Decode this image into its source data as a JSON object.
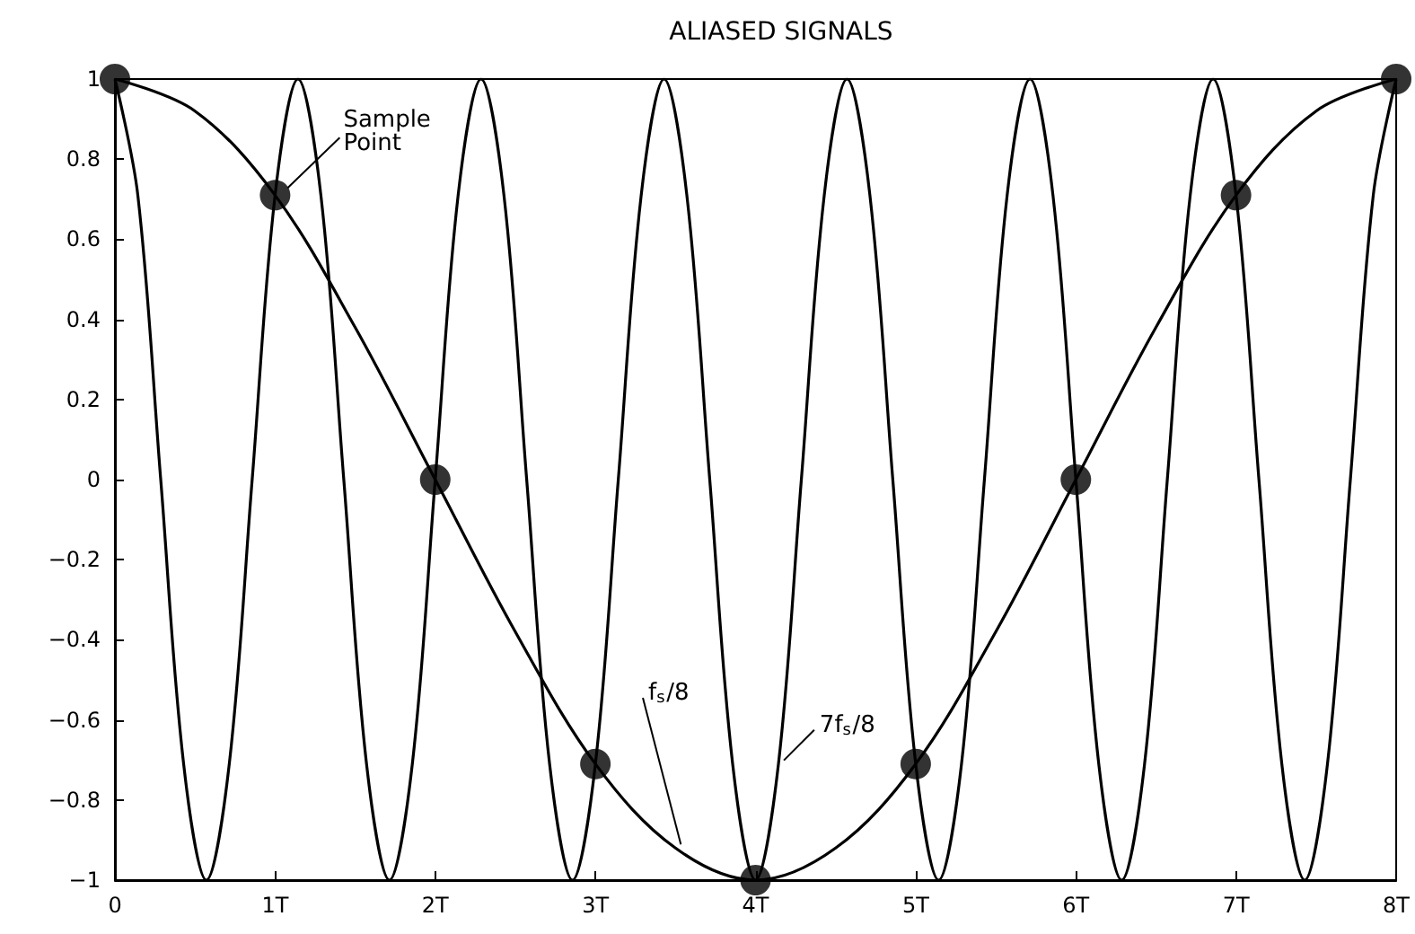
{
  "chart_data": {
    "type": "line",
    "title": "ALIASED SIGNALS",
    "xlim": [
      0,
      8
    ],
    "xticks": [
      0,
      {
        "value": 1,
        "label": "1T"
      },
      {
        "value": 2,
        "label": "2T"
      },
      {
        "value": 3,
        "label": "3T"
      },
      {
        "value": 4,
        "label": "4T"
      },
      {
        "value": 5,
        "label": "5T"
      },
      {
        "value": 6,
        "label": "6T"
      },
      {
        "value": 7,
        "label": "7T"
      },
      {
        "value": 8,
        "label": "8T"
      }
    ],
    "ylim": [
      -1,
      1
    ],
    "yticks": [
      {
        "value": -1,
        "label": "−1"
      },
      {
        "value": -0.8,
        "label": "−0.8"
      },
      {
        "value": -0.6,
        "label": "−0.6"
      },
      {
        "value": -0.4,
        "label": "−0.4"
      },
      {
        "value": -0.2,
        "label": "−0.2"
      },
      0,
      0.2,
      0.4,
      0.6,
      0.8,
      1
    ],
    "series": [
      {
        "color": "#000000",
        "marker": "none",
        "x": [
          0,
          0.143,
          0.286,
          0.429,
          0.571,
          0.714,
          0.857,
          1,
          1.143,
          1.286,
          1.429,
          1.571,
          1.714,
          1.857,
          2,
          2.143,
          2.286,
          2.429,
          2.571,
          2.714,
          2.857,
          3,
          3.143,
          3.286,
          3.429,
          3.571,
          3.714,
          3.857,
          4,
          4.143,
          4.286,
          4.429,
          4.571,
          4.714,
          4.857,
          5,
          5.143,
          5.286,
          5.429,
          5.571,
          5.714,
          5.857,
          6,
          6.143,
          6.286,
          6.429,
          6.571,
          6.714,
          6.857,
          7,
          7.143,
          7.286,
          7.429,
          7.571,
          7.714,
          7.857,
          8
        ],
        "values": [
          1,
          0.71,
          0,
          -0.71,
          -1,
          -0.71,
          0,
          0.71,
          1,
          0.71,
          0,
          -0.71,
          -1,
          -0.71,
          0,
          0.71,
          1,
          0.71,
          0,
          -0.71,
          -1,
          -0.71,
          0,
          0.71,
          1,
          0.71,
          0,
          -0.71,
          -1,
          -0.71,
          0,
          0.71,
          1,
          0.71,
          0,
          -0.71,
          -1,
          -0.71,
          0,
          0.71,
          1,
          0.71,
          0,
          -0.71,
          -1,
          -0.71,
          0,
          0.71,
          1,
          0.71,
          0,
          -0.71,
          -1,
          -0.71,
          0,
          0.71,
          1
        ]
      },
      {
        "color": "#000000",
        "marker": "none",
        "x": [
          0,
          0.5,
          1,
          1.5,
          2,
          2.5,
          3,
          3.5,
          4,
          4.5,
          5,
          5.5,
          6,
          6.5,
          7,
          7.5,
          8
        ],
        "values": [
          1,
          0.92,
          0.71,
          0.38,
          0,
          -0.38,
          -0.71,
          -0.92,
          -1,
          -0.92,
          -0.71,
          -0.38,
          0,
          0.38,
          0.71,
          0.92,
          1
        ]
      },
      {
        "type": "scatter",
        "color": "#000000",
        "marker": "circle",
        "x": [
          0,
          1,
          2,
          3,
          4,
          5,
          6,
          7,
          8
        ],
        "values": [
          1,
          0.71,
          0,
          -0.71,
          -1,
          -0.71,
          0,
          0.71,
          1
        ]
      }
    ],
    "annotations": [
      {
        "text": "Sample Point",
        "x": 1,
        "y": 0.71
      },
      {
        "text": "f$_{s}$/8",
        "x": 3.5,
        "y": -0.92
      },
      {
        "text": "7f$_{s}$/8",
        "x": 4.143,
        "y": -0.71
      }
    ]
  }
}
